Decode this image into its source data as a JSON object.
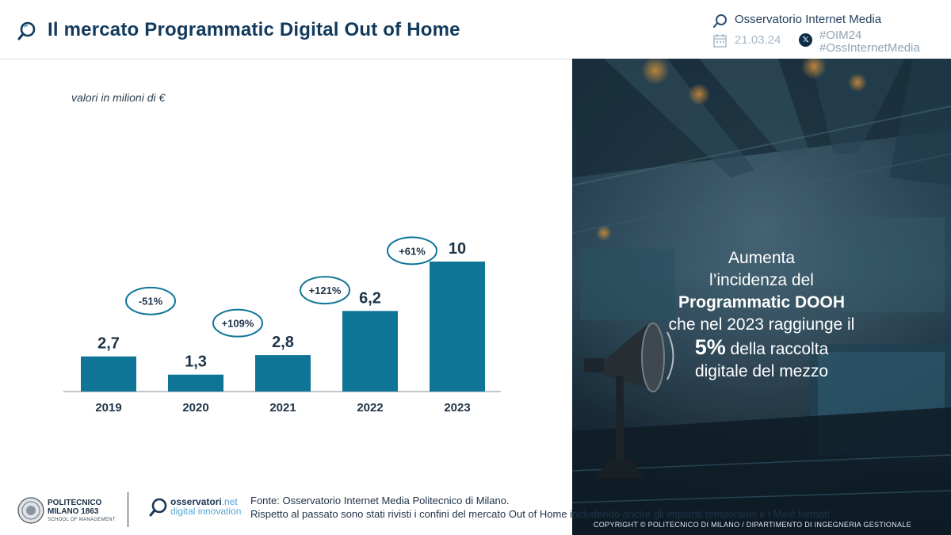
{
  "header": {
    "title": "Il mercato Programmatic Digital Out of Home",
    "brand": "Osservatorio Internet Media",
    "date": "21.03.24",
    "tags": [
      "#OIM24",
      "#OssInternetMedia"
    ]
  },
  "chart_data": {
    "type": "bar",
    "unit_note": "valori in milioni di €",
    "categories": [
      "2019",
      "2020",
      "2021",
      "2022",
      "2023"
    ],
    "values": [
      2.7,
      1.3,
      2.8,
      6.2,
      10
    ],
    "value_labels": [
      "2,7",
      "1,3",
      "2,8",
      "6,2",
      "10"
    ],
    "growth_labels": [
      "-51%",
      "+109%",
      "+121%",
      "+61%"
    ],
    "ylim": [
      0,
      10
    ],
    "bar_color": "#0f7597",
    "ellipse_color": "#0f7597"
  },
  "callout": {
    "line1": "Aumenta",
    "line2": "l’incidenza del",
    "line3": "Programmatic DOOH",
    "line4": "che nel 2023 raggiunge il",
    "line5_big": "5%",
    "line5_rest": " della raccolta",
    "line6": "digitale del mezzo"
  },
  "footer": {
    "poli_name": "POLITECNICO",
    "poli_city": "MILANO 1863",
    "poli_school": "SCHOOL OF MANAGEMENT",
    "oss_name": "osservatori",
    "oss_net": ".net",
    "oss_sub": "digital innovation",
    "source_line1": "Fonte: Osservatorio Internet Media Politecnico di Milano.",
    "source_line2": "Rispetto al passato sono stati rivisti i confini del mercato Out of Home includendo anche gli impianti temporanei e i Maxi formati",
    "copyright": "COPYRIGHT © POLITECNICO DI MILANO / DIPARTIMENTO DI INGEGNERIA GESTIONALE"
  }
}
